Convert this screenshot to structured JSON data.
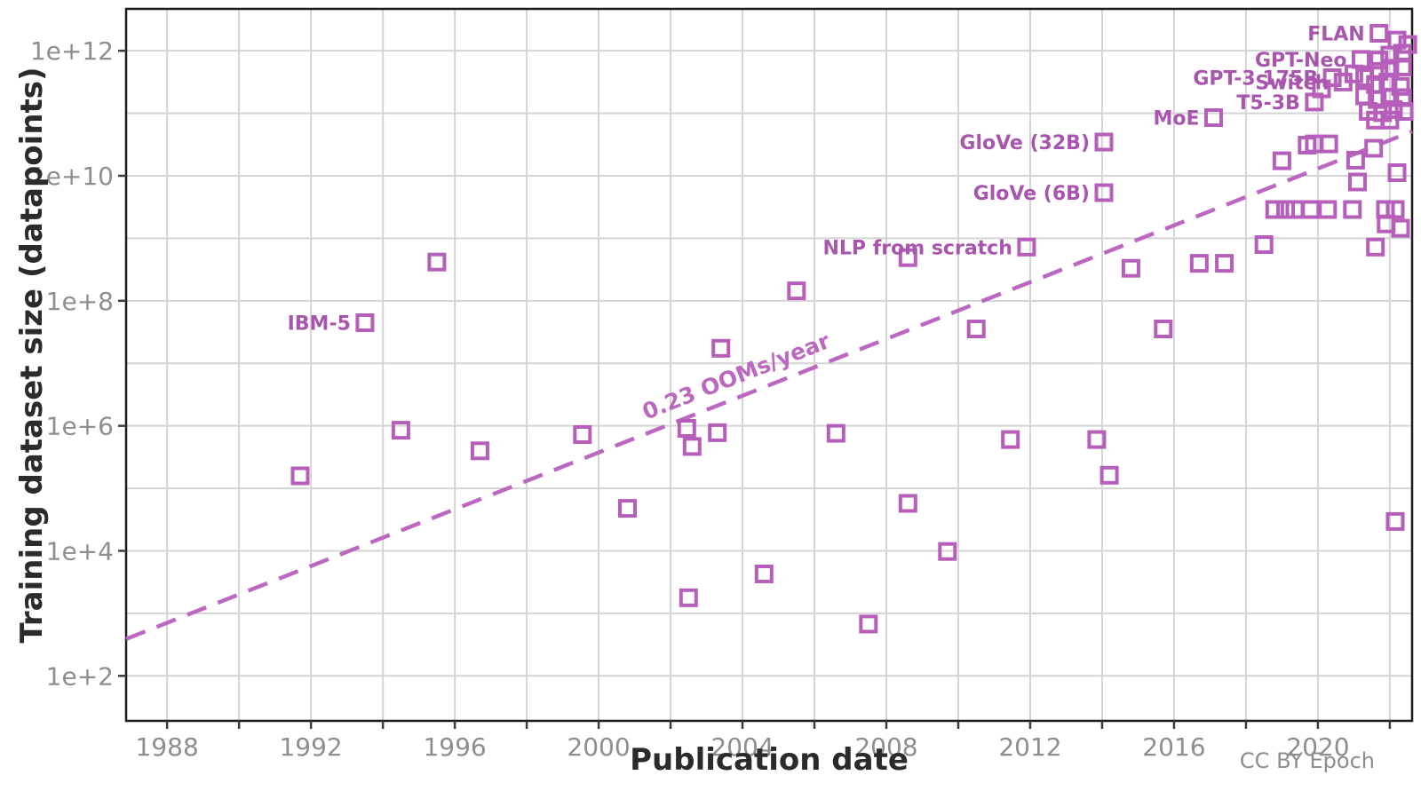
{
  "attribution": "CC BY Epoch",
  "chart_data": {
    "type": "scatter",
    "title": "",
    "xlabel": "Publication date",
    "ylabel": "Training dataset size (datapoints)",
    "x_unit": "publication year",
    "y_scale": "log10",
    "x_range": [
      1986.86,
      2022.62
    ],
    "y_log_range": [
      1.28,
      12.67
    ],
    "grid": {
      "x_start": 1988,
      "x_end": 2022,
      "x_step": 2,
      "y_start": 2,
      "y_end": 12,
      "y_step": 1
    },
    "x_ticks": [
      "1988",
      "1992",
      "1996",
      "2000",
      "2004",
      "2008",
      "2012",
      "2016",
      "2020"
    ],
    "y_ticks": [
      {
        "exp": 12,
        "label": "1e+12"
      },
      {
        "exp": 10,
        "label": "1e+10"
      },
      {
        "exp": 8,
        "label": "1e+8"
      },
      {
        "exp": 6,
        "label": "1e+6"
      },
      {
        "exp": 4,
        "label": "1e+4"
      },
      {
        "exp": 2,
        "label": "1e+2"
      }
    ],
    "colors": {
      "grid": "#d4d4d4",
      "axis": "#1a1a1a",
      "tick_label": "#8e8e8e",
      "marker": "#b55fba",
      "marker_label": "#a855ad",
      "trend": "#bc68c0"
    },
    "trendline": {
      "label": "0.23 OOMs/year",
      "ooms_per_year": 0.23,
      "x1_year": 1986.86,
      "y1_log10": 2.59,
      "x2_year": 2022.62,
      "y2_log10": 10.71,
      "label_year": 2003.9,
      "label_log10": 6.68
    },
    "points": [
      {
        "label": "IBM-5",
        "year": 1993.5,
        "log10": 7.65,
        "value": 45000000.0
      },
      {
        "label": "NLP from scratch",
        "year": 2011.9,
        "log10": 8.86,
        "value": 720000000.0
      },
      {
        "label": "GloVe (6B)",
        "year": 2014.05,
        "log10": 9.73,
        "value": 5400000000.0
      },
      {
        "label": "GloVe (32B)",
        "year": 2014.05,
        "log10": 10.54,
        "value": 35000000000.0
      },
      {
        "label": "MoE",
        "year": 2017.1,
        "log10": 10.93,
        "value": 85000000000.0
      },
      {
        "label": "T5-3B",
        "year": 2019.9,
        "log10": 11.18,
        "value": 150000000000.0
      },
      {
        "label": "GPT-3 175B",
        "year": 2020.4,
        "log10": 11.57,
        "value": 370000000000.0
      },
      {
        "label": "Switch",
        "year": 2020.7,
        "log10": 11.5,
        "value": 320000000000.0
      },
      {
        "label": "GPT-Neo",
        "year": 2021.2,
        "log10": 11.86,
        "value": 720000000000.0
      },
      {
        "label": "FLAN",
        "year": 2021.7,
        "log10": 12.28,
        "value": 1900000000000.0
      },
      {
        "year": 1991.7,
        "log10": 5.2,
        "value": 160000.0
      },
      {
        "year": 1994.5,
        "log10": 5.93,
        "value": 850000.0
      },
      {
        "year": 1995.5,
        "log10": 8.62,
        "value": 420000000.0
      },
      {
        "year": 1996.7,
        "log10": 5.6,
        "value": 400000.0
      },
      {
        "year": 1999.55,
        "log10": 5.86,
        "value": 720000.0
      },
      {
        "year": 2000.8,
        "log10": 4.68,
        "value": 48000.0
      },
      {
        "year": 2002.45,
        "log10": 5.96,
        "value": 910000.0
      },
      {
        "year": 2002.5,
        "log10": 3.25,
        "value": 1800.0
      },
      {
        "year": 2002.6,
        "log10": 5.67,
        "value": 470000.0
      },
      {
        "year": 2003.3,
        "log10": 5.89,
        "value": 780000.0
      },
      {
        "year": 2003.4,
        "log10": 7.24,
        "value": 17000000.0
      },
      {
        "year": 2004.6,
        "log10": 3.63,
        "value": 4300.0
      },
      {
        "year": 2005.5,
        "log10": 8.16,
        "value": 140000000.0
      },
      {
        "year": 2006.6,
        "log10": 5.88,
        "value": 760000.0
      },
      {
        "year": 2007.5,
        "log10": 2.83,
        "value": 680.0
      },
      {
        "year": 2008.6,
        "log10": 8.69,
        "value": 490000000.0
      },
      {
        "year": 2008.6,
        "log10": 4.76,
        "value": 58000.0
      },
      {
        "year": 2009.7,
        "log10": 3.99,
        "value": 9800.0
      },
      {
        "year": 2010.5,
        "log10": 7.55,
        "value": 35000000.0
      },
      {
        "year": 2011.45,
        "log10": 5.78,
        "value": 600000.0
      },
      {
        "year": 2013.85,
        "log10": 5.78,
        "value": 600000.0
      },
      {
        "year": 2014.2,
        "log10": 5.21,
        "value": 160000.0
      },
      {
        "year": 2014.8,
        "log10": 8.52,
        "value": 330000000.0
      },
      {
        "year": 2015.7,
        "log10": 7.55,
        "value": 35000000.0
      },
      {
        "year": 2016.7,
        "log10": 8.6,
        "value": 400000000.0
      },
      {
        "year": 2017.4,
        "log10": 8.6,
        "value": 400000000.0
      },
      {
        "year": 2018.5,
        "log10": 8.9,
        "value": 790000000.0
      },
      {
        "year": 2018.8,
        "log10": 9.46,
        "value": 2900000000.0
      },
      {
        "year": 2019.0,
        "log10": 10.24,
        "value": 17000000000.0
      },
      {
        "year": 2019.1,
        "log10": 9.46,
        "value": 2900000000.0
      },
      {
        "year": 2019.36,
        "log10": 9.46,
        "value": 2900000000.0
      },
      {
        "year": 2019.7,
        "log10": 10.49,
        "value": 31000000000.0
      },
      {
        "year": 2019.8,
        "log10": 9.46,
        "value": 2900000000.0
      },
      {
        "year": 2019.9,
        "log10": 10.51,
        "value": 32000000000.0
      },
      {
        "year": 2020.1,
        "log10": 11.39,
        "value": 250000000000.0
      },
      {
        "year": 2020.27,
        "log10": 9.46,
        "value": 2900000000.0
      },
      {
        "year": 2020.3,
        "log10": 10.51,
        "value": 32000000000.0
      },
      {
        "year": 2020.96,
        "log10": 9.46,
        "value": 2900000000.0
      },
      {
        "year": 2021.0,
        "log10": 11.63,
        "value": 430000000000.0
      },
      {
        "year": 2021.05,
        "log10": 10.25,
        "value": 18000000000.0
      },
      {
        "year": 2021.1,
        "log10": 9.9,
        "value": 7900000000.0
      },
      {
        "year": 2021.3,
        "log10": 11.57,
        "value": 370000000000.0
      },
      {
        "year": 2021.3,
        "log10": 11.28,
        "value": 190000000000.0
      },
      {
        "year": 2021.4,
        "log10": 11.03,
        "value": 110000000000.0
      },
      {
        "year": 2021.55,
        "log10": 10.44,
        "value": 28000000000.0
      },
      {
        "year": 2021.6,
        "log10": 11.46,
        "value": 290000000000.0
      },
      {
        "year": 2021.6,
        "log10": 10.89,
        "value": 78000000000.0
      },
      {
        "year": 2021.6,
        "log10": 8.86,
        "value": 720000000.0
      },
      {
        "year": 2021.65,
        "log10": 11.22,
        "value": 170000000000.0
      },
      {
        "year": 2021.7,
        "log10": 11.85,
        "value": 710000000000.0
      },
      {
        "year": 2021.7,
        "log10": 11.67,
        "value": 470000000000.0
      },
      {
        "year": 2021.8,
        "log10": 11.01,
        "value": 100000000000.0
      },
      {
        "year": 2021.88,
        "log10": 9.46,
        "value": 2900000000.0
      },
      {
        "year": 2021.9,
        "log10": 9.23,
        "value": 1700000000.0
      },
      {
        "year": 2021.95,
        "log10": 11.5,
        "value": 320000000000.0
      },
      {
        "year": 2022.0,
        "log10": 11.93,
        "value": 850000000000.0
      },
      {
        "year": 2022.0,
        "log10": 11.72,
        "value": 520000000000.0
      },
      {
        "year": 2022.0,
        "log10": 11.25,
        "value": 180000000000.0
      },
      {
        "year": 2022.0,
        "log10": 10.89,
        "value": 78000000000.0
      },
      {
        "year": 2022.1,
        "log10": 11.06,
        "value": 110000000000.0
      },
      {
        "year": 2022.15,
        "log10": 9.46,
        "value": 2900000000.0
      },
      {
        "year": 2022.15,
        "log10": 4.47,
        "value": 30000.0
      },
      {
        "year": 2022.2,
        "log10": 12.17,
        "value": 1500000000000.0
      },
      {
        "year": 2022.2,
        "log10": 10.05,
        "value": 11000000000.0
      },
      {
        "year": 2022.3,
        "log10": 11.43,
        "value": 270000000000.0
      },
      {
        "year": 2022.3,
        "log10": 9.16,
        "value": 1400000000.0
      },
      {
        "year": 2022.35,
        "log10": 11.96,
        "value": 910000000000.0
      },
      {
        "year": 2022.35,
        "log10": 11.74,
        "value": 550000000000.0
      },
      {
        "year": 2022.35,
        "log10": 11.25,
        "value": 180000000000.0
      },
      {
        "year": 2022.4,
        "log10": 11.03,
        "value": 110000000000.0
      },
      {
        "year": 2022.5,
        "log10": 12.1,
        "value": 1300000000000.0
      }
    ]
  }
}
